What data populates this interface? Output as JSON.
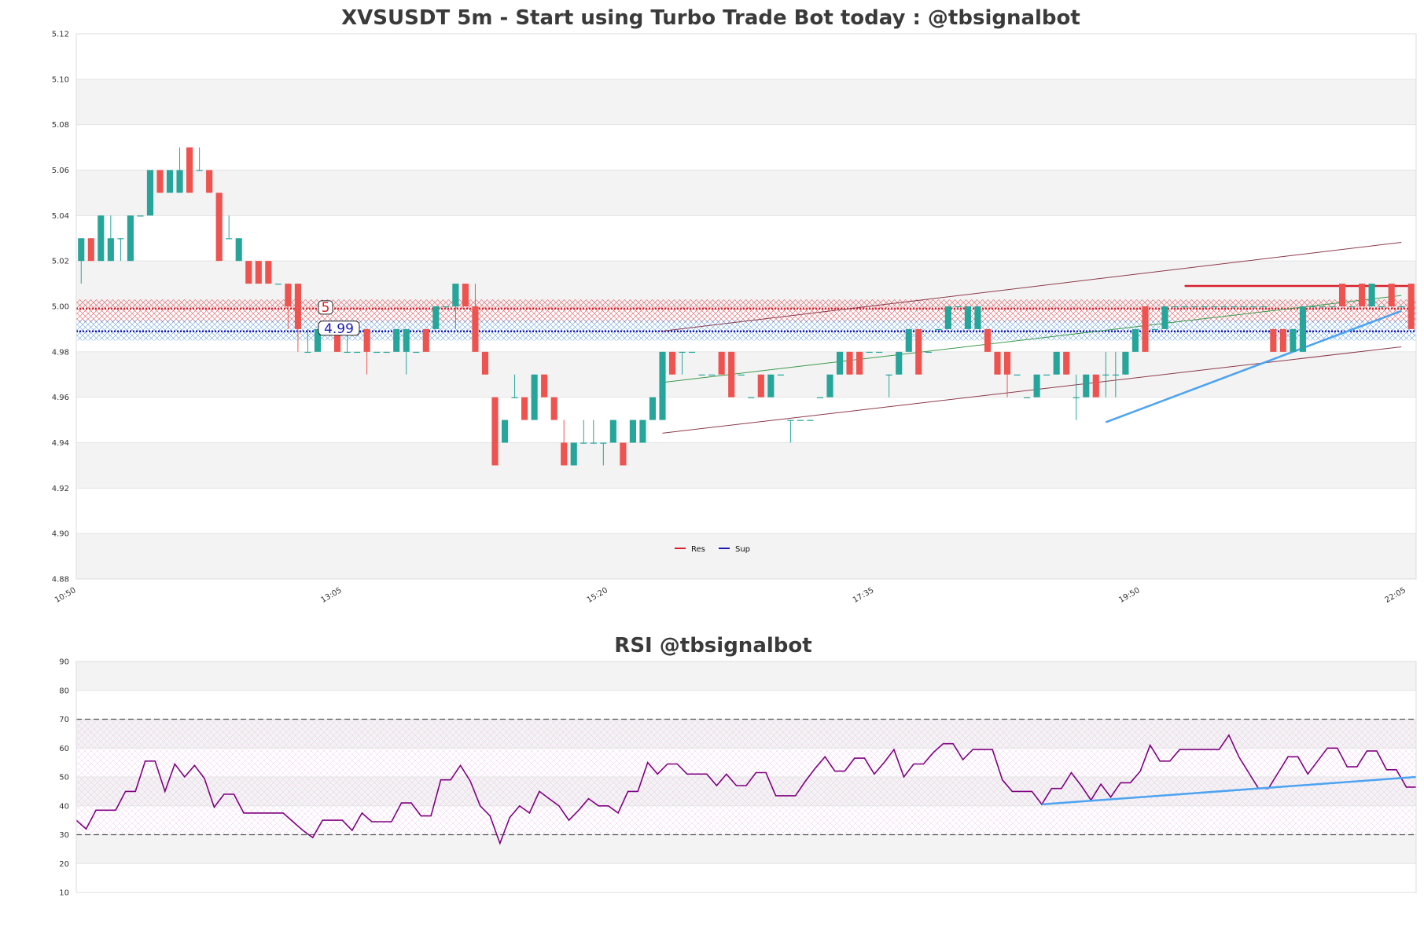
{
  "colors": {
    "up": "#26a69a",
    "down": "#ef5350",
    "res": "#d61f2b",
    "sup": "#1a1ab8",
    "rsi_line": "#800080",
    "trend_light": "#4da3f0",
    "trend_dark": "#8b3a4a",
    "trend_green": "#3a9a4a",
    "band_gray": "#f3f3f3",
    "grid": "#e4e4e4"
  },
  "chart_data": [
    {
      "type": "candlestick",
      "title": "XVSUSDT 5m - Start using Turbo Trade Bot today : @tbsignalbot",
      "ylim": [
        4.88,
        5.12
      ],
      "y_ticks": [
        "4.88",
        "4.90",
        "4.92",
        "4.94",
        "4.96",
        "4.98",
        "5.00",
        "5.02",
        "5.04",
        "5.06",
        "5.08",
        "5.10",
        "5.12"
      ],
      "x_ticks": [
        "10:50",
        "13:05",
        "15:20",
        "17:35",
        "19:50",
        "22:05"
      ],
      "x_tick_index": [
        0,
        27,
        54,
        81,
        108,
        135
      ],
      "legend": {
        "position": "bottom-center",
        "items": [
          {
            "name": "Res",
            "color": "#d61f2b"
          },
          {
            "name": "Sup",
            "color": "#1a1ab8"
          }
        ]
      },
      "levels": {
        "res": {
          "value": 4.999,
          "label": "5",
          "zone": [
            4.993,
            5.003
          ]
        },
        "sup": {
          "value": 4.989,
          "label": "4.99",
          "zone": [
            4.985,
            4.994
          ]
        }
      },
      "trendlines": [
        {
          "color": "trend_dark",
          "from": [
            59,
            4.9891
          ],
          "to": [
            134,
            5.0282
          ]
        },
        {
          "color": "trend_dark",
          "from": [
            59,
            4.9442
          ],
          "to": [
            134,
            4.9822
          ]
        },
        {
          "color": "trend_green",
          "from": [
            59,
            4.9665
          ],
          "to": [
            134,
            5.0048
          ]
        },
        {
          "color": "trend_light",
          "from": [
            104,
            4.949
          ],
          "to": [
            134,
            4.998
          ],
          "width": 2.5
        },
        {
          "color": "res",
          "from": [
            112,
            5.009
          ],
          "to": [
            135,
            5.009
          ],
          "width": 2.5
        }
      ],
      "candles": [
        [
          5.02,
          5.03,
          5.01,
          5.03
        ],
        [
          5.03,
          5.03,
          5.02,
          5.02
        ],
        [
          5.02,
          5.04,
          5.02,
          5.04
        ],
        [
          5.02,
          5.04,
          5.02,
          5.03
        ],
        [
          5.03,
          5.03,
          5.02,
          5.03
        ],
        [
          5.02,
          5.04,
          5.02,
          5.04
        ],
        [
          5.04,
          5.04,
          5.04,
          5.04
        ],
        [
          5.04,
          5.06,
          5.04,
          5.06
        ],
        [
          5.06,
          5.06,
          5.05,
          5.05
        ],
        [
          5.05,
          5.06,
          5.05,
          5.06
        ],
        [
          5.05,
          5.07,
          5.05,
          5.06
        ],
        [
          5.07,
          5.07,
          5.05,
          5.05
        ],
        [
          5.06,
          5.07,
          5.06,
          5.06
        ],
        [
          5.06,
          5.06,
          5.05,
          5.05
        ],
        [
          5.05,
          5.05,
          5.02,
          5.02
        ],
        [
          5.03,
          5.04,
          5.03,
          5.03
        ],
        [
          5.02,
          5.03,
          5.02,
          5.03
        ],
        [
          5.02,
          5.02,
          5.01,
          5.01
        ],
        [
          5.02,
          5.02,
          5.01,
          5.01
        ],
        [
          5.02,
          5.02,
          5.01,
          5.01
        ],
        [
          5.01,
          5.01,
          5.01,
          5.01
        ],
        [
          5.01,
          5.01,
          4.99,
          5.0
        ],
        [
          5.01,
          5.01,
          4.98,
          4.99
        ],
        [
          4.98,
          4.99,
          4.98,
          4.98
        ],
        [
          4.98,
          4.99,
          4.98,
          4.99
        ],
        [
          4.99,
          4.99,
          4.99,
          4.99
        ],
        [
          4.99,
          4.99,
          4.98,
          4.98
        ],
        [
          4.98,
          4.99,
          4.98,
          4.98
        ],
        [
          4.98,
          4.98,
          4.98,
          4.98
        ],
        [
          4.99,
          4.99,
          4.97,
          4.98
        ],
        [
          4.98,
          4.98,
          4.98,
          4.98
        ],
        [
          4.98,
          4.98,
          4.98,
          4.98
        ],
        [
          4.98,
          4.99,
          4.98,
          4.99
        ],
        [
          4.98,
          4.99,
          4.97,
          4.99
        ],
        [
          4.98,
          4.98,
          4.98,
          4.98
        ],
        [
          4.99,
          4.99,
          4.98,
          4.98
        ],
        [
          4.99,
          5.0,
          4.99,
          5.0
        ],
        [
          5.0,
          5.0,
          5.0,
          5.0
        ],
        [
          5.0,
          5.01,
          4.99,
          5.01
        ],
        [
          5.01,
          5.01,
          5.0,
          5.0
        ],
        [
          5.0,
          5.01,
          4.98,
          4.98
        ],
        [
          4.98,
          4.98,
          4.97,
          4.97
        ],
        [
          4.96,
          4.96,
          4.93,
          4.93
        ],
        [
          4.94,
          4.95,
          4.94,
          4.95
        ],
        [
          4.96,
          4.97,
          4.96,
          4.96
        ],
        [
          4.96,
          4.96,
          4.95,
          4.95
        ],
        [
          4.95,
          4.97,
          4.95,
          4.97
        ],
        [
          4.97,
          4.97,
          4.96,
          4.96
        ],
        [
          4.96,
          4.96,
          4.95,
          4.95
        ],
        [
          4.94,
          4.95,
          4.93,
          4.93
        ],
        [
          4.93,
          4.94,
          4.93,
          4.94
        ],
        [
          4.94,
          4.95,
          4.94,
          4.94
        ],
        [
          4.94,
          4.95,
          4.94,
          4.94
        ],
        [
          4.94,
          4.94,
          4.93,
          4.94
        ],
        [
          4.94,
          4.95,
          4.94,
          4.95
        ],
        [
          4.94,
          4.94,
          4.93,
          4.93
        ],
        [
          4.94,
          4.95,
          4.94,
          4.95
        ],
        [
          4.94,
          4.95,
          4.94,
          4.95
        ],
        [
          4.95,
          4.96,
          4.95,
          4.96
        ],
        [
          4.95,
          4.98,
          4.95,
          4.98
        ],
        [
          4.98,
          4.98,
          4.97,
          4.97
        ],
        [
          4.98,
          4.98,
          4.97,
          4.98
        ],
        [
          4.98,
          4.98,
          4.98,
          4.98
        ],
        [
          4.97,
          4.97,
          4.97,
          4.97
        ],
        [
          4.97,
          4.97,
          4.97,
          4.97
        ],
        [
          4.98,
          4.98,
          4.97,
          4.97
        ],
        [
          4.98,
          4.98,
          4.96,
          4.96
        ],
        [
          4.97,
          4.97,
          4.97,
          4.97
        ],
        [
          4.96,
          4.96,
          4.96,
          4.96
        ],
        [
          4.97,
          4.97,
          4.96,
          4.96
        ],
        [
          4.96,
          4.97,
          4.96,
          4.97
        ],
        [
          4.97,
          4.97,
          4.97,
          4.97
        ],
        [
          4.95,
          4.95,
          4.94,
          4.95
        ],
        [
          4.95,
          4.95,
          4.95,
          4.95
        ],
        [
          4.95,
          4.95,
          4.95,
          4.95
        ],
        [
          4.96,
          4.96,
          4.96,
          4.96
        ],
        [
          4.96,
          4.97,
          4.96,
          4.97
        ],
        [
          4.97,
          4.98,
          4.97,
          4.98
        ],
        [
          4.98,
          4.98,
          4.97,
          4.97
        ],
        [
          4.98,
          4.98,
          4.97,
          4.97
        ],
        [
          4.98,
          4.98,
          4.98,
          4.98
        ],
        [
          4.98,
          4.98,
          4.98,
          4.98
        ],
        [
          4.97,
          4.97,
          4.96,
          4.97
        ],
        [
          4.97,
          4.98,
          4.97,
          4.98
        ],
        [
          4.98,
          4.99,
          4.98,
          4.99
        ],
        [
          4.99,
          4.99,
          4.97,
          4.97
        ],
        [
          4.98,
          4.98,
          4.98,
          4.98
        ],
        [
          4.99,
          4.99,
          4.99,
          4.99
        ],
        [
          4.99,
          5.0,
          4.99,
          5.0
        ],
        [
          5.0,
          5.0,
          5.0,
          5.0
        ],
        [
          4.99,
          5.0,
          4.99,
          5.0
        ],
        [
          4.99,
          5.0,
          4.99,
          5.0
        ],
        [
          4.99,
          4.99,
          4.98,
          4.98
        ],
        [
          4.98,
          4.98,
          4.97,
          4.97
        ],
        [
          4.98,
          4.98,
          4.96,
          4.97
        ],
        [
          4.97,
          4.97,
          4.97,
          4.97
        ],
        [
          4.96,
          4.96,
          4.96,
          4.96
        ],
        [
          4.96,
          4.97,
          4.96,
          4.97
        ],
        [
          4.97,
          4.97,
          4.97,
          4.97
        ],
        [
          4.97,
          4.98,
          4.97,
          4.98
        ],
        [
          4.98,
          4.98,
          4.97,
          4.97
        ],
        [
          4.96,
          4.97,
          4.95,
          4.96
        ],
        [
          4.96,
          4.97,
          4.96,
          4.97
        ],
        [
          4.97,
          4.97,
          4.96,
          4.96
        ],
        [
          4.97,
          4.98,
          4.96,
          4.97
        ],
        [
          4.97,
          4.98,
          4.96,
          4.97
        ],
        [
          4.97,
          4.98,
          4.97,
          4.98
        ],
        [
          4.98,
          4.99,
          4.98,
          4.99
        ],
        [
          5.0,
          5.0,
          4.98,
          4.98
        ],
        [
          4.99,
          4.99,
          4.99,
          4.99
        ],
        [
          4.99,
          5.0,
          4.99,
          5.0
        ],
        [
          5.0,
          5.0,
          5.0,
          5.0
        ],
        [
          5.0,
          5.0,
          5.0,
          5.0
        ],
        [
          5.0,
          5.0,
          5.0,
          5.0
        ],
        [
          5.0,
          5.0,
          5.0,
          5.0
        ],
        [
          5.0,
          5.0,
          5.0,
          5.0
        ],
        [
          5.0,
          5.0,
          5.0,
          5.0
        ],
        [
          5.0,
          5.0,
          5.0,
          5.0
        ],
        [
          5.0,
          5.0,
          5.0,
          5.0
        ],
        [
          5.0,
          5.0,
          5.0,
          5.0
        ],
        [
          5.0,
          5.0,
          5.0,
          5.0
        ],
        [
          4.99,
          4.99,
          4.98,
          4.98
        ],
        [
          4.99,
          4.99,
          4.98,
          4.98
        ],
        [
          4.98,
          4.99,
          4.98,
          4.99
        ],
        [
          4.98,
          5.0,
          4.98,
          5.0
        ],
        [
          5.0,
          5.0,
          5.0,
          5.0
        ],
        [
          5.0,
          5.0,
          5.0,
          5.0
        ],
        [
          5.0,
          5.0,
          5.0,
          5.0
        ],
        [
          5.01,
          5.01,
          5.0,
          5.0
        ],
        [
          5.0,
          5.0,
          5.0,
          5.0
        ],
        [
          5.01,
          5.01,
          5.0,
          5.0
        ],
        [
          5.0,
          5.01,
          5.0,
          5.01
        ],
        [
          5.0,
          5.0,
          5.0,
          5.0
        ],
        [
          5.01,
          5.01,
          5.0,
          5.0
        ],
        [
          5.0,
          5.0,
          5.0,
          5.0
        ],
        [
          5.01,
          5.01,
          4.99,
          4.99
        ]
      ]
    },
    {
      "type": "line",
      "title": "RSI @tbsignalbot",
      "ylim": [
        10,
        90
      ],
      "y_ticks": [
        "10",
        "20",
        "30",
        "40",
        "50",
        "60",
        "70",
        "80",
        "90"
      ],
      "overbought": 70,
      "oversold": 30,
      "trendline": {
        "from": [
          98,
          40.5
        ],
        "to": [
          136,
          50
        ]
      },
      "rsi": [
        35,
        32,
        38.5,
        38.5,
        38.5,
        45,
        45,
        55.5,
        55.5,
        45,
        54.5,
        50,
        54,
        49.5,
        39.5,
        44,
        44,
        37.5,
        37.5,
        37.5,
        37.5,
        37.5,
        34.5,
        31.5,
        29,
        35,
        35,
        35,
        31.5,
        37.5,
        34.5,
        34.5,
        34.5,
        41,
        41,
        36.5,
        36.5,
        49,
        49,
        54,
        48.5,
        40,
        36.5,
        27,
        36,
        40,
        37.5,
        45,
        42.5,
        40,
        35,
        38.5,
        42.5,
        40,
        40,
        37.5,
        45,
        45,
        55,
        51,
        54.5,
        54.5,
        51,
        51,
        51,
        47,
        51,
        47,
        47,
        51.5,
        51.5,
        43.5,
        43.5,
        43.5,
        48.5,
        53,
        57,
        52,
        52,
        56.5,
        56.5,
        51,
        55,
        59.5,
        50,
        54.5,
        54.5,
        58.5,
        61.5,
        61.5,
        56,
        59.5,
        59.5,
        59.5,
        49,
        45,
        45,
        45,
        40.5,
        46,
        46,
        51.5,
        47,
        42,
        47.5,
        43,
        48,
        48,
        52,
        61,
        55.5,
        55.5,
        59.5,
        59.5,
        59.5,
        59.5,
        59.5,
        64.5,
        57,
        51.5,
        46,
        46,
        51.5,
        57,
        57,
        51,
        55.5,
        60,
        60,
        53.5,
        53.5,
        59,
        59,
        52.5,
        52.5,
        46.5,
        46.5
      ]
    }
  ]
}
